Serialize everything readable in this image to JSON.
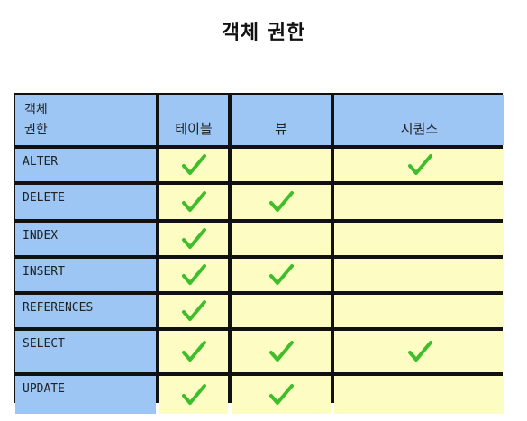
{
  "title": "객체 권한",
  "table": {
    "corner_line1": "객체",
    "corner_line2": "권한",
    "columns": [
      "테이블",
      "뷰",
      "시퀀스"
    ],
    "rows": [
      {
        "label": "ALTER",
        "checks": [
          true,
          false,
          true
        ]
      },
      {
        "label": "DELETE",
        "checks": [
          true,
          true,
          false
        ]
      },
      {
        "label": "INDEX",
        "checks": [
          true,
          false,
          false
        ]
      },
      {
        "label": "INSERT",
        "checks": [
          true,
          true,
          false
        ]
      },
      {
        "label": "REFERENCES",
        "checks": [
          true,
          false,
          false
        ]
      },
      {
        "label": "SELECT",
        "checks": [
          true,
          true,
          true
        ]
      },
      {
        "label": "UPDATE",
        "checks": [
          true,
          true,
          false
        ]
      }
    ]
  },
  "colors": {
    "header_bg": "#9dc6f4",
    "cell_bg": "#fdfcc2",
    "check": "#3fbe2c",
    "grid_line": "#111111"
  },
  "icons": {
    "check": "checkmark-icon"
  }
}
